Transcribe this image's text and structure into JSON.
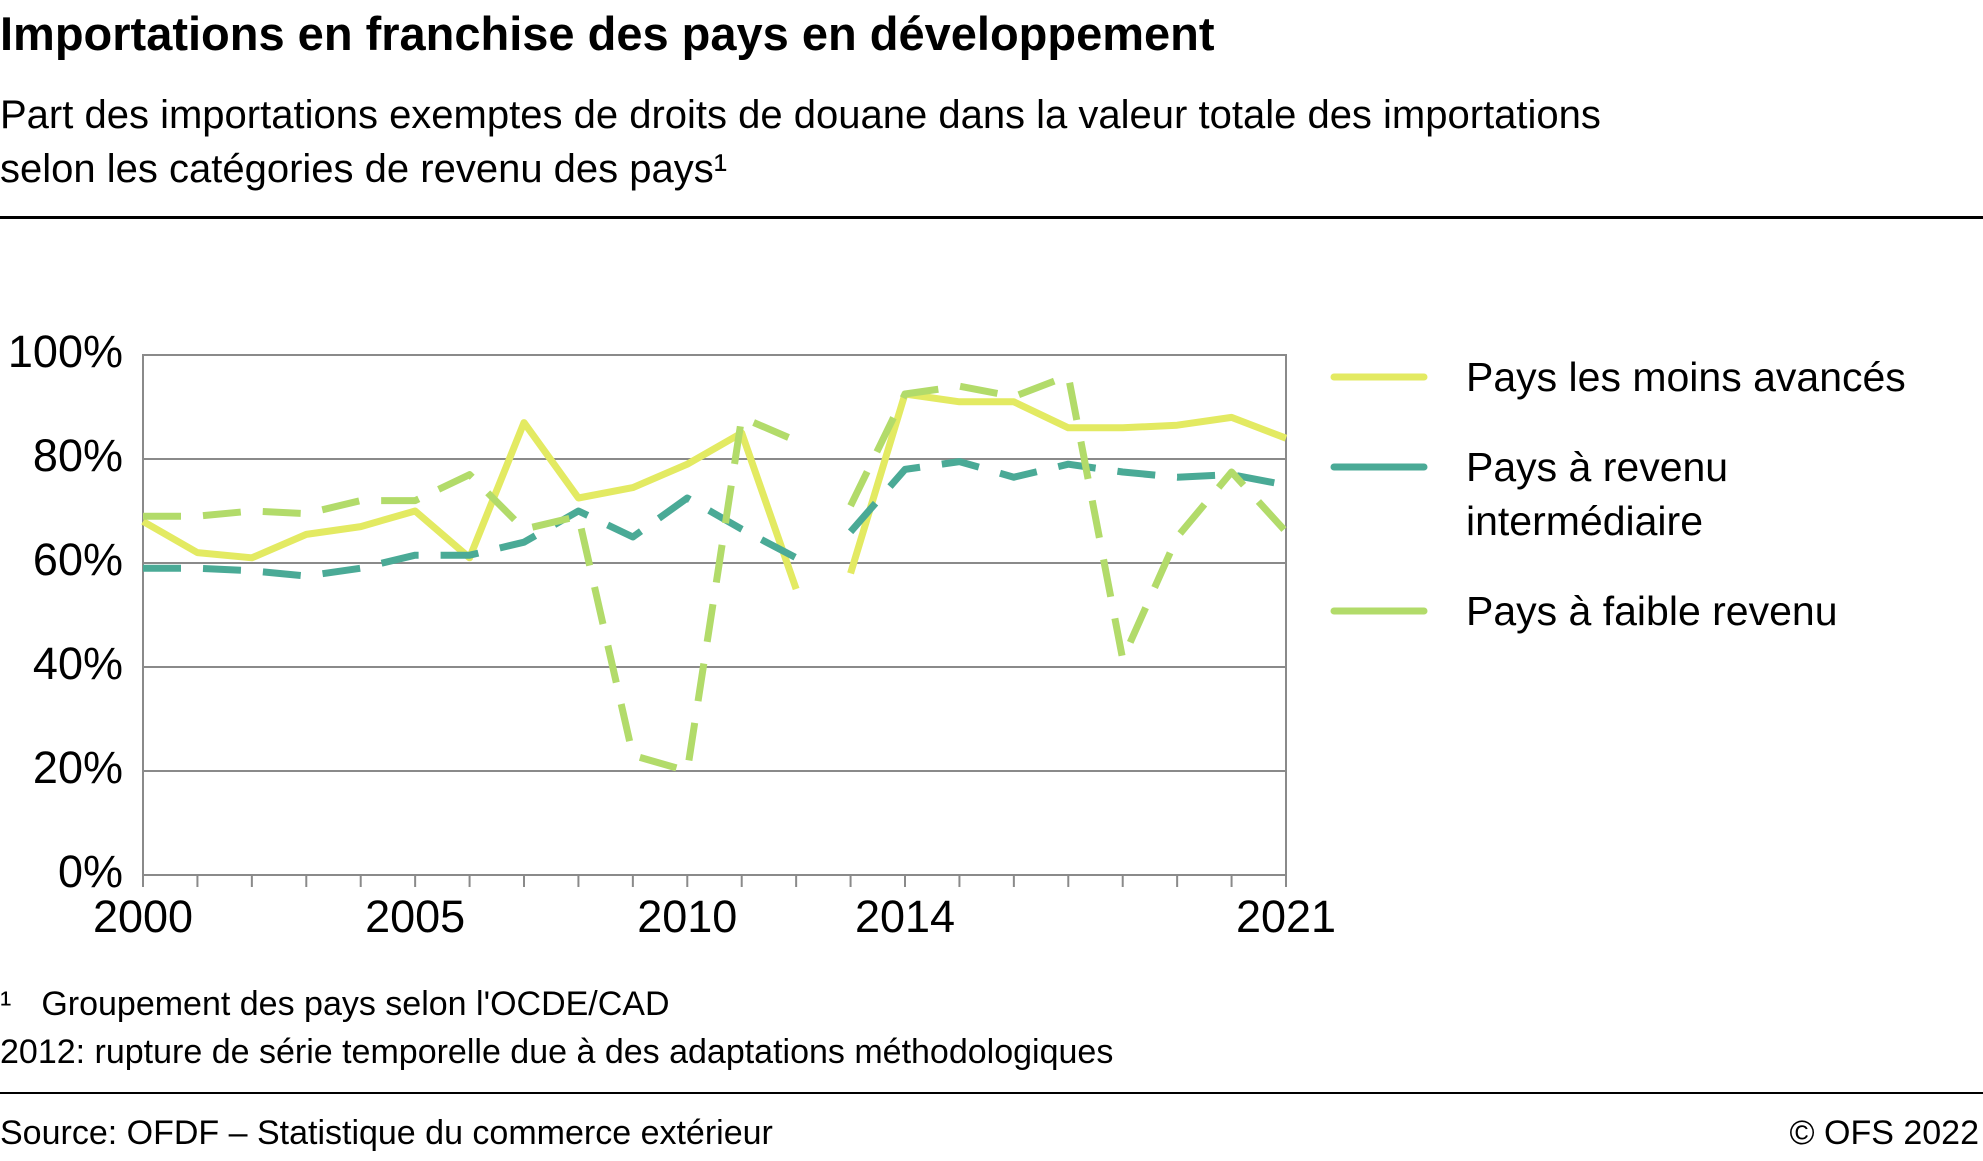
{
  "title": "Importations en franchise des pays en développement",
  "subtitle": "Part des importations exemptes de droits de douane dans la valeur totale des importations selon les catégories de revenu des pays¹",
  "chart_data": {
    "type": "line",
    "x": [
      2000,
      2001,
      2002,
      2003,
      2004,
      2005,
      2006,
      2007,
      2008,
      2009,
      2010,
      2011,
      2012,
      2013,
      2014,
      2015,
      2016,
      2017,
      2018,
      2019,
      2020,
      2021
    ],
    "series": [
      {
        "name": "Pays les moins avancés",
        "color": "#e3ea62",
        "dashed": false,
        "values": [
          68,
          62,
          61,
          65.5,
          67,
          70,
          61,
          87,
          72.5,
          74.5,
          79,
          85,
          55,
          58,
          92.5,
          91,
          91,
          86,
          86,
          86.5,
          88,
          84
        ]
      },
      {
        "name": "Pays à revenu intermédiaire",
        "color": "#4aaa96",
        "dashed": true,
        "values": [
          59,
          59,
          58.5,
          57.5,
          59,
          61.5,
          61.5,
          64,
          70,
          65,
          72.5,
          66.5,
          61,
          66,
          78,
          79.5,
          76.5,
          79,
          77.5,
          76.5,
          77,
          75
        ]
      },
      {
        "name": "Pays à faible revenu",
        "color": "#b2db6a",
        "dashed": true,
        "values": [
          69,
          69,
          70,
          69.5,
          72,
          72,
          77,
          66.5,
          69,
          23,
          20,
          88,
          83.5,
          71,
          92.5,
          94,
          92,
          96,
          41.5,
          65,
          77.5,
          66
        ]
      }
    ],
    "series_break_after": 2012,
    "xlim": [
      2000,
      2021
    ],
    "xticks": [
      2000,
      2005,
      2010,
      2014,
      2021
    ],
    "xticks_minor": [
      2000,
      2001,
      2002,
      2003,
      2004,
      2005,
      2006,
      2007,
      2008,
      2009,
      2010,
      2011,
      2012,
      2013,
      2014,
      2015,
      2016,
      2017,
      2018,
      2019,
      2020,
      2021
    ],
    "ylim": [
      0,
      100
    ],
    "yticks": [
      {
        "value": 0,
        "label": "0%"
      },
      {
        "value": 20,
        "label": "20%"
      },
      {
        "value": 40,
        "label": "40%"
      },
      {
        "value": 60,
        "label": "60%"
      },
      {
        "value": 80,
        "label": "80%"
      },
      {
        "value": 100,
        "label": "100%"
      }
    ],
    "grid": true,
    "legend": "right"
  },
  "footnotes": {
    "marker": "¹",
    "note": "Groupement des pays selon l'OCDE/CAD",
    "break_note": "2012: rupture de série temporelle due à des adaptations méthodologiques"
  },
  "source": "Source: OFDF – Statistique du commerce extérieur",
  "copyright": "© OFS 2022"
}
